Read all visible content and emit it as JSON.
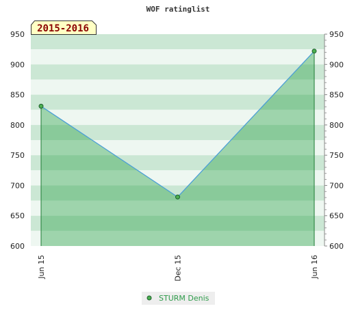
{
  "chart_data": {
    "type": "area",
    "title": "WOF ratinglist",
    "period_label": "2015-2016",
    "x": [
      "Jun 15",
      "Dec 15",
      "Jun 16"
    ],
    "series": [
      {
        "name": "STURM Denis",
        "values": [
          831,
          681,
          922
        ]
      }
    ],
    "ylim": [
      600,
      950
    ],
    "y_ticks": [
      600,
      650,
      700,
      750,
      800,
      850,
      900,
      950
    ],
    "y_ticks_left": [
      "600",
      "650",
      "700",
      "750",
      "800",
      "850",
      "900",
      "950"
    ],
    "y_ticks_right": [
      "600",
      "650",
      "700",
      "750",
      "800",
      "850",
      "900",
      "950"
    ],
    "xlabel": "",
    "ylabel": "",
    "grid": "horizontal color bands",
    "legend_position": "bottom-center",
    "colors": {
      "line": "#4c9fd6",
      "area_fill": "#1e9a3c",
      "marker_fill": "#4caf50",
      "label_box_fill": "#ffffc4",
      "label_text": "#8b0000",
      "legend_text": "#2e9b4a"
    }
  }
}
